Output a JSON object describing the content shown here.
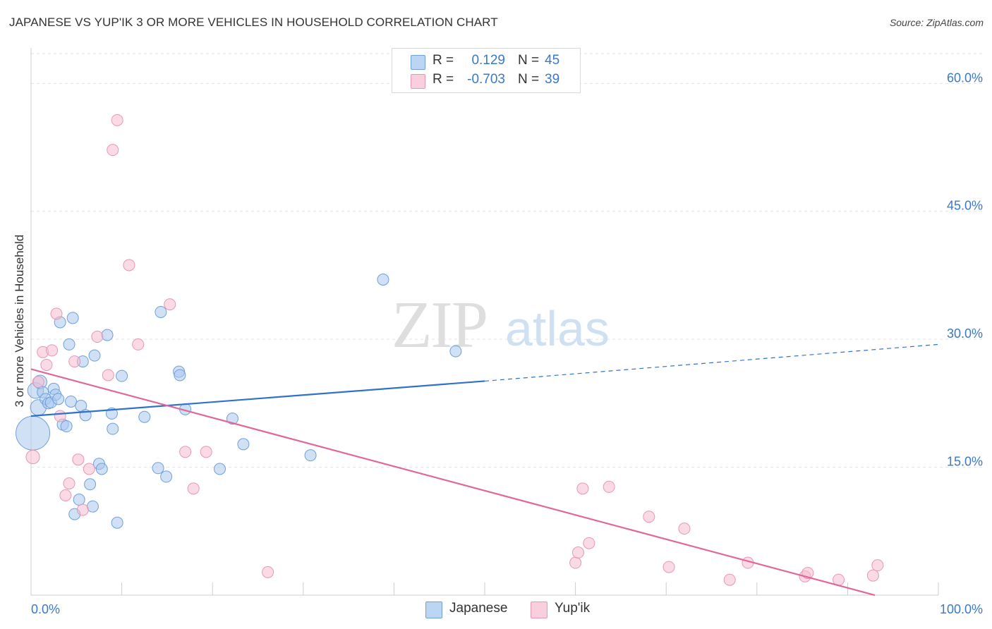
{
  "title": "JAPANESE VS YUP'IK 3 OR MORE VEHICLES IN HOUSEHOLD CORRELATION CHART",
  "source": "Source: ZipAtlas.com",
  "watermark": {
    "zip": "ZIP",
    "atlas": "atlas"
  },
  "colors": {
    "japanese_fill": "#a9c8ef",
    "japanese_stroke": "#6f9fd8",
    "japanese_line": "#2f72cc",
    "yupik_fill": "#f6bdd0",
    "yupik_stroke": "#e996b2",
    "yupik_line": "#e0679a",
    "tick_label": "#3a78c9",
    "grid": "#e3e3e3"
  },
  "legend": {
    "rows": [
      {
        "series": "Japanese",
        "r_label": "R =",
        "r_value": "0.129",
        "n_label": "N =",
        "n_value": "45"
      },
      {
        "series": "Yup'ik",
        "r_label": "R =",
        "r_value": "-0.703",
        "n_label": "N =",
        "n_value": "39"
      }
    ]
  },
  "bottom_legend": [
    "Japanese",
    "Yup'ik"
  ],
  "chart_data": {
    "type": "scatter",
    "title": "JAPANESE VS YUP'IK 3 OR MORE VEHICLES IN HOUSEHOLD CORRELATION CHART",
    "xlabel": "",
    "ylabel": "3 or more Vehicles in Household",
    "xlim": [
      0,
      100
    ],
    "ylim": [
      0,
      63.5
    ],
    "x_tick_labels": [
      {
        "value": 0,
        "label": "0.0%"
      },
      {
        "value": 100,
        "label": "100.0%"
      }
    ],
    "y_tick_labels": [
      {
        "value": 15,
        "label": "15.0%"
      },
      {
        "value": 30,
        "label": "30.0%"
      },
      {
        "value": 45,
        "label": "45.0%"
      },
      {
        "value": 60,
        "label": "60.0%"
      }
    ],
    "x_minor_ticks": [
      10,
      20,
      30,
      40,
      50,
      60,
      70,
      80,
      90,
      100
    ],
    "grid": true,
    "series": [
      {
        "name": "Japanese",
        "points": [
          {
            "x": 0.2,
            "y": 19.0,
            "s": 3
          },
          {
            "x": 0.5,
            "y": 24.0,
            "s": 1.4
          },
          {
            "x": 0.8,
            "y": 22.0,
            "s": 1.4
          },
          {
            "x": 1.0,
            "y": 25.0,
            "s": 1.2
          },
          {
            "x": 1.3,
            "y": 23.8,
            "s": 1
          },
          {
            "x": 1.6,
            "y": 23.0,
            "s": 1
          },
          {
            "x": 1.9,
            "y": 22.5,
            "s": 1
          },
          {
            "x": 2.2,
            "y": 22.6,
            "s": 1
          },
          {
            "x": 2.5,
            "y": 24.2,
            "s": 1
          },
          {
            "x": 2.7,
            "y": 23.5,
            "s": 1
          },
          {
            "x": 3.0,
            "y": 23.0,
            "s": 1
          },
          {
            "x": 3.2,
            "y": 32.0,
            "s": 1
          },
          {
            "x": 3.5,
            "y": 20.0,
            "s": 1
          },
          {
            "x": 3.9,
            "y": 19.8,
            "s": 1
          },
          {
            "x": 4.2,
            "y": 29.4,
            "s": 1
          },
          {
            "x": 4.4,
            "y": 22.7,
            "s": 1
          },
          {
            "x": 4.6,
            "y": 32.5,
            "s": 1
          },
          {
            "x": 4.8,
            "y": 9.5,
            "s": 1
          },
          {
            "x": 5.3,
            "y": 11.2,
            "s": 1
          },
          {
            "x": 5.5,
            "y": 22.2,
            "s": 1
          },
          {
            "x": 5.7,
            "y": 27.4,
            "s": 1
          },
          {
            "x": 6.0,
            "y": 21.1,
            "s": 1
          },
          {
            "x": 6.5,
            "y": 13.0,
            "s": 1
          },
          {
            "x": 6.8,
            "y": 10.4,
            "s": 1
          },
          {
            "x": 7.0,
            "y": 28.1,
            "s": 1
          },
          {
            "x": 7.5,
            "y": 15.4,
            "s": 1
          },
          {
            "x": 7.8,
            "y": 14.8,
            "s": 1
          },
          {
            "x": 8.4,
            "y": 30.5,
            "s": 1
          },
          {
            "x": 8.9,
            "y": 21.3,
            "s": 1
          },
          {
            "x": 9.0,
            "y": 19.5,
            "s": 1
          },
          {
            "x": 9.5,
            "y": 8.5,
            "s": 1
          },
          {
            "x": 10.0,
            "y": 25.7,
            "s": 1
          },
          {
            "x": 12.5,
            "y": 20.9,
            "s": 1
          },
          {
            "x": 14.0,
            "y": 14.9,
            "s": 1
          },
          {
            "x": 14.3,
            "y": 33.2,
            "s": 1
          },
          {
            "x": 14.9,
            "y": 13.9,
            "s": 1
          },
          {
            "x": 16.3,
            "y": 26.2,
            "s": 1
          },
          {
            "x": 16.4,
            "y": 25.8,
            "s": 1
          },
          {
            "x": 17.0,
            "y": 21.8,
            "s": 1
          },
          {
            "x": 20.8,
            "y": 14.8,
            "s": 1
          },
          {
            "x": 22.2,
            "y": 20.7,
            "s": 1
          },
          {
            "x": 23.4,
            "y": 17.7,
            "s": 1
          },
          {
            "x": 30.8,
            "y": 16.4,
            "s": 1
          },
          {
            "x": 38.8,
            "y": 37.0,
            "s": 1
          },
          {
            "x": 46.8,
            "y": 28.6,
            "s": 1
          }
        ],
        "trend": {
          "x0": 0,
          "y0": 21.0,
          "x1": 50,
          "y1": 25.1,
          "dash_to_x": 100,
          "dash_to_y": 29.4
        }
      },
      {
        "name": "Yup'ik",
        "points": [
          {
            "x": 0.2,
            "y": 16.2,
            "s": 1.2
          },
          {
            "x": 0.8,
            "y": 25.0,
            "s": 1
          },
          {
            "x": 1.3,
            "y": 28.5,
            "s": 1
          },
          {
            "x": 1.7,
            "y": 27.0,
            "s": 1
          },
          {
            "x": 2.3,
            "y": 28.7,
            "s": 1
          },
          {
            "x": 2.8,
            "y": 33.0,
            "s": 1
          },
          {
            "x": 3.2,
            "y": 21.0,
            "s": 1
          },
          {
            "x": 3.8,
            "y": 11.7,
            "s": 1
          },
          {
            "x": 4.2,
            "y": 13.1,
            "s": 1
          },
          {
            "x": 4.8,
            "y": 27.4,
            "s": 1
          },
          {
            "x": 5.2,
            "y": 15.9,
            "s": 1
          },
          {
            "x": 5.7,
            "y": 10.0,
            "s": 1
          },
          {
            "x": 6.4,
            "y": 14.8,
            "s": 1
          },
          {
            "x": 7.3,
            "y": 30.3,
            "s": 1
          },
          {
            "x": 8.5,
            "y": 25.8,
            "s": 1
          },
          {
            "x": 9.0,
            "y": 52.2,
            "s": 1
          },
          {
            "x": 9.5,
            "y": 55.7,
            "s": 1
          },
          {
            "x": 10.8,
            "y": 38.7,
            "s": 1
          },
          {
            "x": 11.8,
            "y": 29.4,
            "s": 1
          },
          {
            "x": 15.3,
            "y": 34.1,
            "s": 1
          },
          {
            "x": 17.0,
            "y": 16.8,
            "s": 1
          },
          {
            "x": 17.9,
            "y": 12.5,
            "s": 1
          },
          {
            "x": 19.3,
            "y": 16.8,
            "s": 1
          },
          {
            "x": 26.1,
            "y": 2.7,
            "s": 1
          },
          {
            "x": 60.0,
            "y": 3.8,
            "s": 1
          },
          {
            "x": 60.3,
            "y": 5.0,
            "s": 1
          },
          {
            "x": 60.8,
            "y": 12.5,
            "s": 1
          },
          {
            "x": 61.5,
            "y": 6.1,
            "s": 1
          },
          {
            "x": 63.7,
            "y": 12.7,
            "s": 1
          },
          {
            "x": 68.1,
            "y": 9.2,
            "s": 1
          },
          {
            "x": 70.3,
            "y": 3.3,
            "s": 1
          },
          {
            "x": 72.0,
            "y": 7.8,
            "s": 1
          },
          {
            "x": 77.0,
            "y": 1.8,
            "s": 1
          },
          {
            "x": 79.0,
            "y": 3.8,
            "s": 1
          },
          {
            "x": 85.3,
            "y": 2.2,
            "s": 1
          },
          {
            "x": 85.6,
            "y": 2.6,
            "s": 1
          },
          {
            "x": 89.0,
            "y": 1.8,
            "s": 1
          },
          {
            "x": 92.8,
            "y": 2.3,
            "s": 1
          },
          {
            "x": 93.3,
            "y": 3.5,
            "s": 1
          }
        ],
        "trend": {
          "x0": 0,
          "y0": 26.5,
          "x1": 93,
          "y1": 0.0
        }
      }
    ]
  }
}
